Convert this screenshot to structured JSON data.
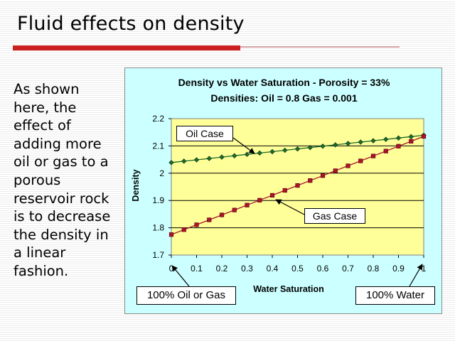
{
  "slide": {
    "title": "Fluid effects on density",
    "body": "As shown\nhere, the\neffect of\nadding more\noil or gas to a\nporous\nreservoir rock\nis to decrease\nthe density in\na linear\nfashion."
  },
  "colors": {
    "accent_red": "#cc1f1f",
    "plot_bg": "#ffff99",
    "panel_bg": "#ccffff",
    "oil_series": "#1f6b2a",
    "gas_series": "#aa1428"
  },
  "chart_data": {
    "type": "line",
    "title": "Density vs Water Saturation - Porosity = 33%",
    "subtitle": "Densities: Oil = 0.8 Gas = 0.001",
    "xlabel": "Water Saturation",
    "ylabel": "Density",
    "xlim": [
      0,
      1
    ],
    "ylim": [
      1.7,
      2.2
    ],
    "grid": true,
    "x_ticks": [
      "0",
      "0.1",
      "0.2",
      "0.3",
      "0.4",
      "0.5",
      "0.6",
      "0.7",
      "0.8",
      "0.9",
      "1"
    ],
    "y_ticks": [
      "1.7",
      "1.8",
      "1.9",
      "2",
      "2.1",
      "2.2"
    ],
    "x": [
      0,
      0.05,
      0.1,
      0.15,
      0.2,
      0.25,
      0.3,
      0.35,
      0.4,
      0.45,
      0.5,
      0.55,
      0.6,
      0.65,
      0.7,
      0.75,
      0.8,
      0.85,
      0.9,
      0.95,
      1
    ],
    "series": [
      {
        "name": "Oil Case",
        "values": [
          2.039,
          2.044,
          2.049,
          2.054,
          2.059,
          2.064,
          2.069,
          2.074,
          2.079,
          2.084,
          2.089,
          2.094,
          2.099,
          2.104,
          2.109,
          2.114,
          2.119,
          2.124,
          2.129,
          2.134,
          2.139
        ]
      },
      {
        "name": "Gas Case",
        "values": [
          1.775,
          1.793,
          1.811,
          1.829,
          1.847,
          1.865,
          1.883,
          1.901,
          1.919,
          1.937,
          1.955,
          1.973,
          1.991,
          2.009,
          2.027,
          2.045,
          2.063,
          2.081,
          2.099,
          2.117,
          2.135
        ]
      }
    ],
    "annotations": {
      "oil_case_label": "Oil Case",
      "gas_case_label": "Gas Case",
      "left_end_label": "100% Oil or Gas",
      "right_end_label": "100% Water"
    }
  }
}
